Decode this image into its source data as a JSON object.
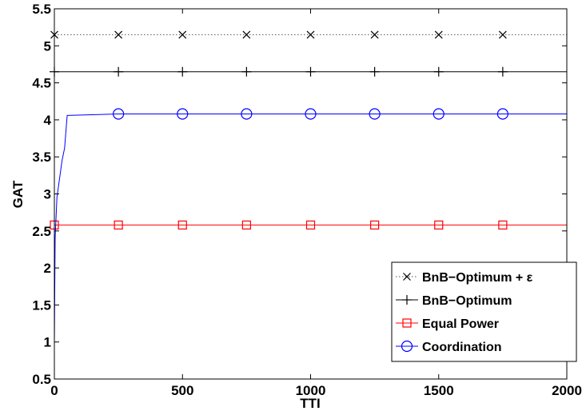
{
  "chart_data": {
    "type": "line",
    "xlabel": "TTI",
    "ylabel": "GAT",
    "xlim": [
      0,
      2000
    ],
    "ylim": [
      0.5,
      5.5
    ],
    "x_ticks": [
      "0",
      "500",
      "1000",
      "1500",
      "2000"
    ],
    "y_ticks": [
      "0.5",
      "1",
      "1.5",
      "2",
      "2.5",
      "3",
      "3.5",
      "4",
      "4.5",
      "5",
      "5.5"
    ],
    "grid": false,
    "legend_position": "bottom-right",
    "marker_x": [
      0,
      250,
      500,
      750,
      1000,
      1250,
      1500,
      1750
    ],
    "series": [
      {
        "name": "BnB−Optimum + ε",
        "color": "#000000",
        "marker": "x",
        "line_style": "dotted",
        "x": [
          0,
          2000
        ],
        "y": [
          5.15,
          5.15
        ]
      },
      {
        "name": "BnB−Optimum",
        "color": "#000000",
        "marker": "+",
        "line_style": "solid",
        "x": [
          0,
          2000
        ],
        "y": [
          4.65,
          4.65
        ]
      },
      {
        "name": "Equal Power",
        "color": "#ff0000",
        "marker": "square",
        "line_style": "solid",
        "x": [
          0,
          2000
        ],
        "y": [
          2.58,
          2.58
        ]
      },
      {
        "name": "Coordination",
        "color": "#0000ff",
        "marker": "circle",
        "line_style": "solid",
        "x": [
          0,
          3,
          10,
          20,
          30,
          40,
          50,
          250,
          2000
        ],
        "y": [
          0.98,
          2.4,
          2.95,
          3.2,
          3.45,
          3.62,
          4.06,
          4.08,
          4.08
        ]
      }
    ]
  }
}
